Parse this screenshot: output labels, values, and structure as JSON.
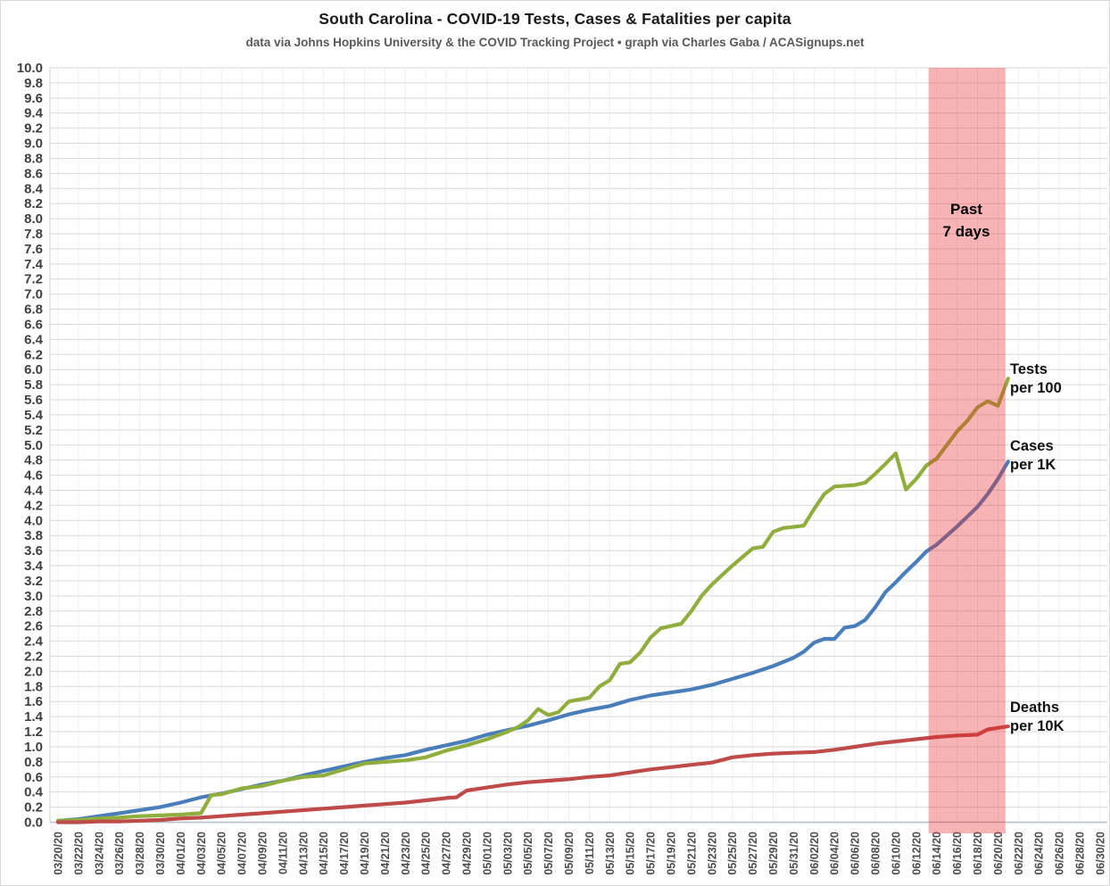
{
  "header": {
    "title": "South Carolina - COVID-19 Tests, Cases & Fatalities per capita",
    "subtitle": "data via Johns Hopkins University & the COVID Tracking Project • graph via Charles Gaba / ACASignups.net"
  },
  "chart_data": {
    "type": "line",
    "title": "South Carolina - COVID-19 Tests, Cases & Fatalities per capita",
    "start_date": "03/20/20",
    "end_date": "06/21/20",
    "x_tick_interval_days": 2,
    "x_tick_labels": [
      "03/20/20",
      "03/22/20",
      "03/24/20",
      "03/26/20",
      "03/28/20",
      "03/30/20",
      "04/01/20",
      "04/03/20",
      "04/05/20",
      "04/07/20",
      "04/09/20",
      "04/11/20",
      "04/13/20",
      "04/15/20",
      "04/17/20",
      "04/19/20",
      "04/21/20",
      "04/23/20",
      "04/25/20",
      "04/27/20",
      "04/29/20",
      "05/01/20",
      "05/03/20",
      "05/05/20",
      "05/07/20",
      "05/09/20",
      "05/11/20",
      "05/13/20",
      "05/15/20",
      "05/17/20",
      "05/19/20",
      "05/21/20",
      "05/23/20",
      "05/25/20",
      "05/27/20",
      "05/29/20",
      "05/31/20",
      "06/02/20",
      "06/04/20",
      "06/06/20",
      "06/08/20",
      "06/10/20",
      "06/12/20",
      "06/14/20",
      "06/16/20",
      "06/18/20",
      "06/20/20",
      "06/22/20",
      "06/24/20",
      "06/26/20",
      "06/28/20",
      "06/30/20"
    ],
    "ylim": [
      0,
      10
    ],
    "y_tick_step": 0.2,
    "grid": true,
    "highlight_band": {
      "label_lines": [
        "Past",
        "7 days"
      ],
      "start_date": "06/14/20",
      "end_date": "06/21/20",
      "fill": "rgba(235,40,40,0.35)"
    },
    "series": [
      {
        "name": "Tests per 100",
        "label_lines": [
          "Tests",
          "per 100"
        ],
        "color": "#8FAE3E",
        "points": [
          [
            0,
            0.02
          ],
          [
            2,
            0.03
          ],
          [
            4,
            0.05
          ],
          [
            6,
            0.06
          ],
          [
            8,
            0.08
          ],
          [
            10,
            0.09
          ],
          [
            12,
            0.1
          ],
          [
            14,
            0.12
          ],
          [
            15,
            0.36
          ],
          [
            16,
            0.37
          ],
          [
            18,
            0.45
          ],
          [
            20,
            0.48
          ],
          [
            22,
            0.55
          ],
          [
            24,
            0.6
          ],
          [
            26,
            0.62
          ],
          [
            28,
            0.7
          ],
          [
            30,
            0.78
          ],
          [
            32,
            0.8
          ],
          [
            34,
            0.82
          ],
          [
            36,
            0.86
          ],
          [
            38,
            0.95
          ],
          [
            40,
            1.02
          ],
          [
            42,
            1.1
          ],
          [
            44,
            1.2
          ],
          [
            45,
            1.26
          ],
          [
            46,
            1.35
          ],
          [
            47,
            1.5
          ],
          [
            48,
            1.42
          ],
          [
            49,
            1.46
          ],
          [
            50,
            1.6
          ],
          [
            52,
            1.65
          ],
          [
            53,
            1.8
          ],
          [
            54,
            1.88
          ],
          [
            55,
            2.1
          ],
          [
            56,
            2.12
          ],
          [
            57,
            2.25
          ],
          [
            58,
            2.45
          ],
          [
            59,
            2.57
          ],
          [
            61,
            2.63
          ],
          [
            62,
            2.8
          ],
          [
            63,
            3.0
          ],
          [
            64,
            3.15
          ],
          [
            66,
            3.4
          ],
          [
            68,
            3.63
          ],
          [
            69,
            3.65
          ],
          [
            70,
            3.85
          ],
          [
            71,
            3.9
          ],
          [
            73,
            3.93
          ],
          [
            74,
            4.15
          ],
          [
            75,
            4.35
          ],
          [
            76,
            4.45
          ],
          [
            78,
            4.47
          ],
          [
            79,
            4.5
          ],
          [
            80,
            4.62
          ],
          [
            81,
            4.75
          ],
          [
            82,
            4.89
          ],
          [
            83,
            4.41
          ],
          [
            84,
            4.55
          ],
          [
            85,
            4.73
          ],
          [
            86,
            4.82
          ],
          [
            87,
            5.0
          ],
          [
            88,
            5.18
          ],
          [
            89,
            5.32
          ],
          [
            90,
            5.5
          ],
          [
            91,
            5.58
          ],
          [
            92,
            5.52
          ],
          [
            93,
            5.88
          ]
        ]
      },
      {
        "name": "Cases per 1K",
        "label_lines": [
          "Cases",
          "per 1K"
        ],
        "color": "#4A7EBB",
        "points": [
          [
            0,
            0.02
          ],
          [
            2,
            0.04
          ],
          [
            4,
            0.08
          ],
          [
            6,
            0.12
          ],
          [
            8,
            0.16
          ],
          [
            10,
            0.2
          ],
          [
            12,
            0.26
          ],
          [
            14,
            0.33
          ],
          [
            16,
            0.38
          ],
          [
            18,
            0.44
          ],
          [
            20,
            0.5
          ],
          [
            22,
            0.55
          ],
          [
            24,
            0.62
          ],
          [
            26,
            0.68
          ],
          [
            28,
            0.74
          ],
          [
            30,
            0.8
          ],
          [
            32,
            0.85
          ],
          [
            34,
            0.89
          ],
          [
            36,
            0.96
          ],
          [
            38,
            1.02
          ],
          [
            40,
            1.08
          ],
          [
            42,
            1.16
          ],
          [
            44,
            1.22
          ],
          [
            46,
            1.28
          ],
          [
            48,
            1.35
          ],
          [
            50,
            1.43
          ],
          [
            52,
            1.49
          ],
          [
            54,
            1.54
          ],
          [
            56,
            1.62
          ],
          [
            58,
            1.68
          ],
          [
            60,
            1.72
          ],
          [
            62,
            1.76
          ],
          [
            64,
            1.82
          ],
          [
            66,
            1.9
          ],
          [
            68,
            1.98
          ],
          [
            70,
            2.07
          ],
          [
            72,
            2.18
          ],
          [
            73,
            2.26
          ],
          [
            74,
            2.38
          ],
          [
            75,
            2.43
          ],
          [
            76,
            2.43
          ],
          [
            77,
            2.58
          ],
          [
            78,
            2.6
          ],
          [
            79,
            2.68
          ],
          [
            80,
            2.85
          ],
          [
            81,
            3.05
          ],
          [
            82,
            3.18
          ],
          [
            83,
            3.32
          ],
          [
            84,
            3.45
          ],
          [
            85,
            3.59
          ],
          [
            86,
            3.68
          ],
          [
            87,
            3.8
          ],
          [
            88,
            3.92
          ],
          [
            89,
            4.05
          ],
          [
            90,
            4.18
          ],
          [
            91,
            4.35
          ],
          [
            92,
            4.55
          ],
          [
            93,
            4.78
          ]
        ]
      },
      {
        "name": "Deaths per 10K",
        "label_lines": [
          "Deaths",
          "per 10K"
        ],
        "color": "#BE4B48",
        "points": [
          [
            0,
            0.0
          ],
          [
            2,
            0.0
          ],
          [
            4,
            0.01
          ],
          [
            6,
            0.01
          ],
          [
            8,
            0.02
          ],
          [
            10,
            0.03
          ],
          [
            12,
            0.05
          ],
          [
            14,
            0.06
          ],
          [
            16,
            0.08
          ],
          [
            18,
            0.1
          ],
          [
            20,
            0.12
          ],
          [
            22,
            0.14
          ],
          [
            24,
            0.16
          ],
          [
            26,
            0.18
          ],
          [
            28,
            0.2
          ],
          [
            30,
            0.22
          ],
          [
            32,
            0.24
          ],
          [
            34,
            0.26
          ],
          [
            36,
            0.29
          ],
          [
            38,
            0.32
          ],
          [
            39,
            0.33
          ],
          [
            40,
            0.42
          ],
          [
            42,
            0.46
          ],
          [
            44,
            0.5
          ],
          [
            46,
            0.53
          ],
          [
            48,
            0.55
          ],
          [
            50,
            0.57
          ],
          [
            52,
            0.6
          ],
          [
            54,
            0.62
          ],
          [
            56,
            0.66
          ],
          [
            58,
            0.7
          ],
          [
            60,
            0.73
          ],
          [
            62,
            0.76
          ],
          [
            64,
            0.79
          ],
          [
            66,
            0.86
          ],
          [
            68,
            0.89
          ],
          [
            70,
            0.91
          ],
          [
            72,
            0.92
          ],
          [
            74,
            0.93
          ],
          [
            76,
            0.96
          ],
          [
            78,
            1.0
          ],
          [
            80,
            1.04
          ],
          [
            82,
            1.07
          ],
          [
            84,
            1.1
          ],
          [
            86,
            1.13
          ],
          [
            88,
            1.15
          ],
          [
            90,
            1.16
          ],
          [
            91,
            1.23
          ],
          [
            92,
            1.25
          ],
          [
            93,
            1.27
          ]
        ]
      }
    ]
  }
}
